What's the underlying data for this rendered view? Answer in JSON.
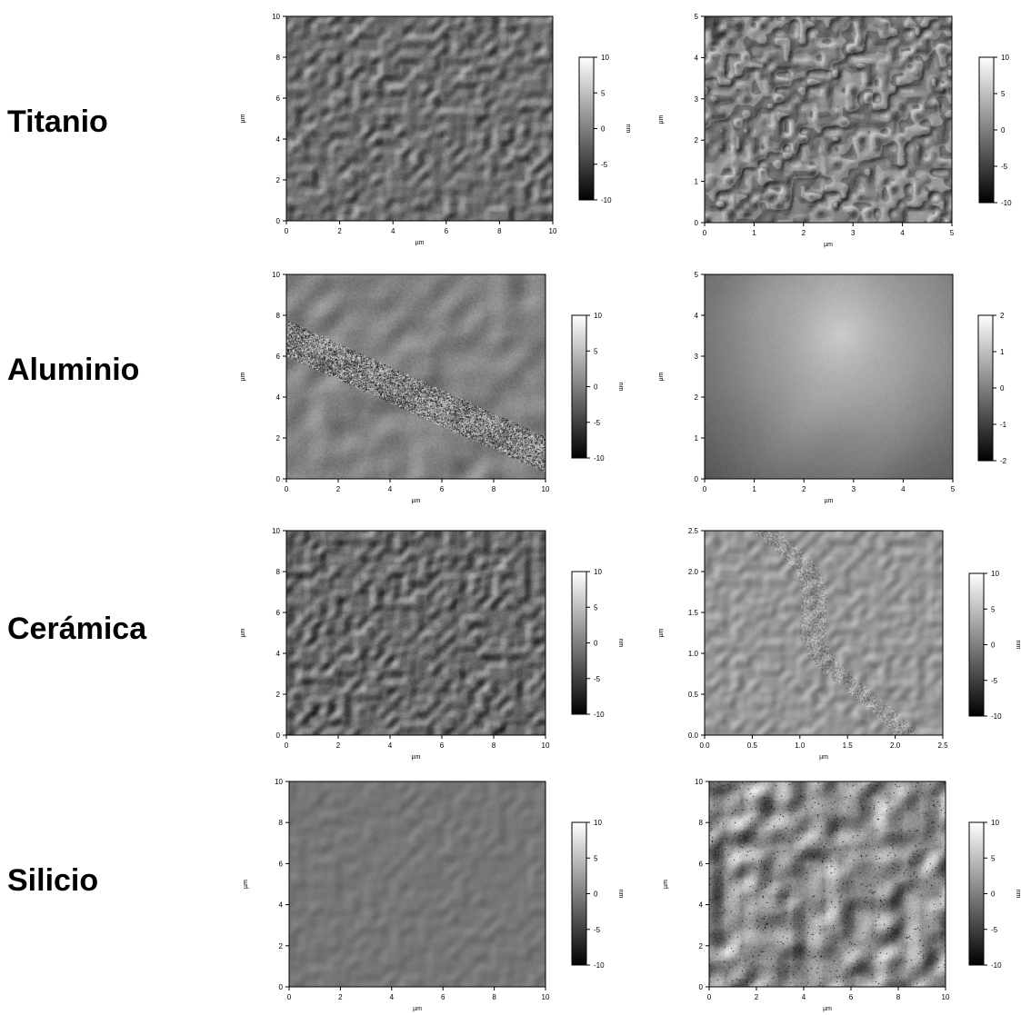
{
  "rows": [
    {
      "label": "Titanio",
      "panels": [
        {
          "x_max": 10,
          "y_max": 10,
          "x_ticks": [
            "0",
            "2",
            "4",
            "6",
            "8",
            "10"
          ],
          "y_ticks": [
            "0",
            "2",
            "4",
            "6",
            "8",
            "10"
          ],
          "x_unit": "µm",
          "y_unit": "µm",
          "z_unit": "nm",
          "z_ticks": [
            "10",
            "5",
            "0",
            "-5",
            "-10"
          ],
          "texture": "fine-grain",
          "seed": 11,
          "base_gray": 110,
          "contrast": 60
        },
        {
          "x_max": 5,
          "y_max": 5,
          "x_ticks": [
            "0",
            "1",
            "2",
            "3",
            "4",
            "5"
          ],
          "y_ticks": [
            "0",
            "1",
            "2",
            "3",
            "4",
            "5"
          ],
          "x_unit": "µm",
          "y_unit": "µm",
          "z_unit": "nm",
          "z_ticks": [
            "10",
            "5",
            "0",
            "-5",
            "-10"
          ],
          "texture": "terraces",
          "seed": 23,
          "base_gray": 125,
          "contrast": 80
        }
      ]
    },
    {
      "label": "Aluminio",
      "panels": [
        {
          "x_max": 10,
          "y_max": 10,
          "x_ticks": [
            "0",
            "2",
            "4",
            "6",
            "8",
            "10"
          ],
          "y_ticks": [
            "0",
            "2",
            "4",
            "6",
            "8",
            "10"
          ],
          "x_unit": "µm",
          "y_unit": "µm",
          "z_unit": "nm",
          "z_ticks": [
            "10",
            "5",
            "0",
            "-5",
            "-10"
          ],
          "texture": "blobs-noise",
          "seed": 37,
          "base_gray": 130,
          "contrast": 70
        },
        {
          "x_max": 5,
          "y_max": 5,
          "x_ticks": [
            "0",
            "1",
            "2",
            "3",
            "4",
            "5"
          ],
          "y_ticks": [
            "0",
            "1",
            "2",
            "3",
            "4",
            "5"
          ],
          "x_unit": "µm",
          "y_unit": "µm",
          "z_unit": "nm",
          "z_ticks": [
            "2",
            "1",
            "0",
            "-1",
            "-2"
          ],
          "texture": "smooth-gradient",
          "seed": 41,
          "base_gray": 120,
          "contrast": 90
        }
      ]
    },
    {
      "label": "Cerámica",
      "panels": [
        {
          "x_max": 10,
          "y_max": 10,
          "x_ticks": [
            "0",
            "2",
            "4",
            "6",
            "8",
            "10"
          ],
          "y_ticks": [
            "0",
            "2",
            "4",
            "6",
            "8",
            "10"
          ],
          "x_unit": "µm",
          "y_unit": "µm",
          "z_unit": "nm",
          "z_ticks": [
            "10",
            "5",
            "0",
            "-5",
            "-10"
          ],
          "texture": "fine-grain",
          "seed": 53,
          "base_gray": 105,
          "contrast": 65
        },
        {
          "x_max": 2.5,
          "y_max": 2.5,
          "x_ticks": [
            "0.0",
            "0.5",
            "1.0",
            "1.5",
            "2.0",
            "2.5"
          ],
          "y_ticks": [
            "0.0",
            "0.5",
            "1.0",
            "1.5",
            "2.0",
            "2.5"
          ],
          "x_unit": "µm",
          "y_unit": "µm",
          "z_unit": "nm",
          "z_ticks": [
            "10",
            "5",
            "0",
            "-5",
            "-10"
          ],
          "texture": "grain-boundary",
          "seed": 67,
          "base_gray": 135,
          "contrast": 60
        }
      ]
    },
    {
      "label": "Silicio",
      "panels": [
        {
          "x_max": 10,
          "y_max": 10,
          "x_ticks": [
            "0",
            "2",
            "4",
            "6",
            "8",
            "10"
          ],
          "y_ticks": [
            "0",
            "2",
            "4",
            "6",
            "8",
            "10"
          ],
          "x_unit": "µm",
          "y_unit": "µm",
          "z_unit": "nm",
          "z_ticks": [
            "10",
            "5",
            "0",
            "-5",
            "-10"
          ],
          "texture": "flat",
          "seed": 71,
          "base_gray": 118,
          "contrast": 18
        },
        {
          "x_max": 10,
          "y_max": 10,
          "x_ticks": [
            "0",
            "2",
            "4",
            "6",
            "8",
            "10"
          ],
          "y_ticks": [
            "0",
            "2",
            "4",
            "6",
            "8",
            "10"
          ],
          "x_unit": "µm",
          "y_unit": "µm",
          "z_unit": "nm",
          "z_ticks": [
            "10",
            "5",
            "0",
            "-5",
            "-10"
          ],
          "texture": "high-contrast",
          "seed": 89,
          "base_gray": 140,
          "contrast": 150
        }
      ]
    }
  ]
}
